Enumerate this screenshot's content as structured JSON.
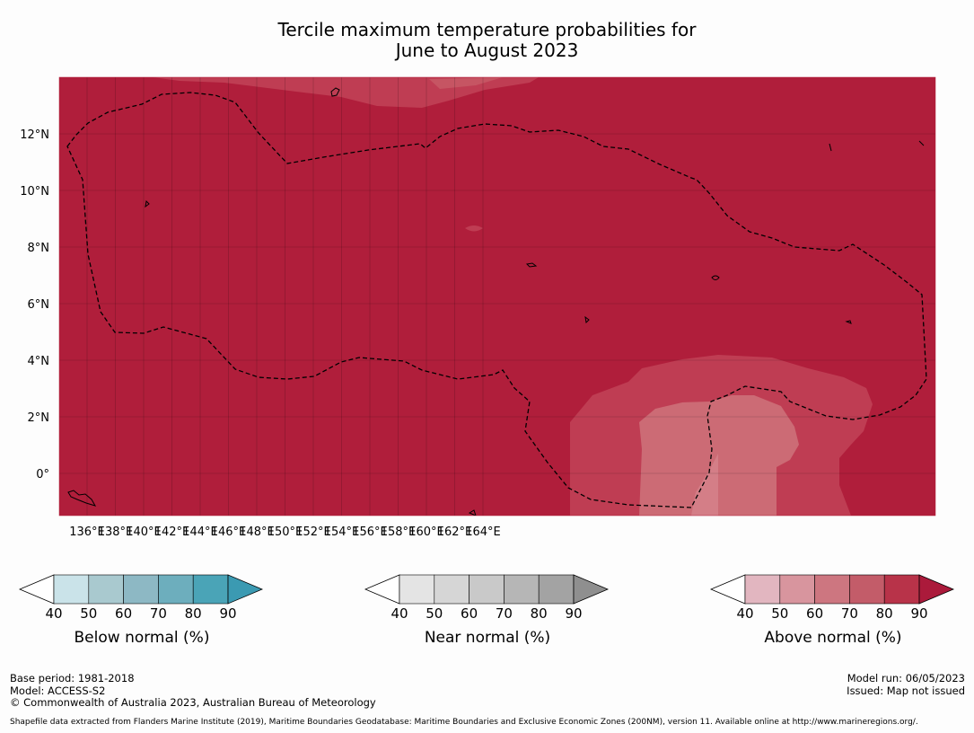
{
  "title": {
    "line1": "Tercile maximum temperature probabilities for",
    "line2": "June to August 2023"
  },
  "map": {
    "lon_labels": [
      "136°E",
      "138°E",
      "140°E",
      "142°E",
      "144°E",
      "146°E",
      "148°E",
      "150°E",
      "152°E",
      "154°E",
      "156°E",
      "158°E",
      "160°E",
      "162°E",
      "164°E"
    ],
    "lat_labels": [
      "12°N",
      "10°N",
      "8°N",
      "6°N",
      "4°N",
      "2°N",
      "0°"
    ],
    "colors": {
      "above_90": "#b01e3b",
      "above_80": "#bf3d53",
      "above_70": "#cc6b75",
      "ocean_bg": "#b01e3b"
    }
  },
  "legends": [
    {
      "id": "below",
      "title": "Below normal (%)",
      "ticks": [
        "40",
        "50",
        "60",
        "70",
        "80",
        "90"
      ],
      "colors": [
        "#ffffff",
        "#cae3e9",
        "#a9c9cf",
        "#8db8c4",
        "#6daebd",
        "#4aa4b7",
        "#3b9ab2"
      ]
    },
    {
      "id": "near",
      "title": "Near normal (%)",
      "ticks": [
        "40",
        "50",
        "60",
        "70",
        "80",
        "90"
      ],
      "colors": [
        "#ffffff",
        "#e4e4e4",
        "#d6d6d6",
        "#c9c9c9",
        "#b6b6b6",
        "#a3a3a3",
        "#8f8f8f"
      ]
    },
    {
      "id": "above",
      "title": "Above normal (%)",
      "ticks": [
        "40",
        "50",
        "60",
        "70",
        "80",
        "90"
      ],
      "colors": [
        "#ffffff",
        "#e2b6c0",
        "#d8959e",
        "#cd7680",
        "#c35c69",
        "#b83349",
        "#ab1a3b"
      ]
    }
  ],
  "footer": {
    "base_period": "Base period: 1981-2018",
    "model": "Model: ACCESS-S2",
    "copyright": "© Commonwealth of Australia 2023, Australian Bureau of Meteorology",
    "model_run": "Model run: 06/05/2023",
    "issued": "Issued: Map not issued",
    "source": "Shapefile data extracted from Flanders Marine Institute (2019), Maritime Boundaries Geodatabase: Maritime Boundaries and Exclusive Economic Zones (200NM), version 11. Available online at http://www.marineregions.org/."
  }
}
